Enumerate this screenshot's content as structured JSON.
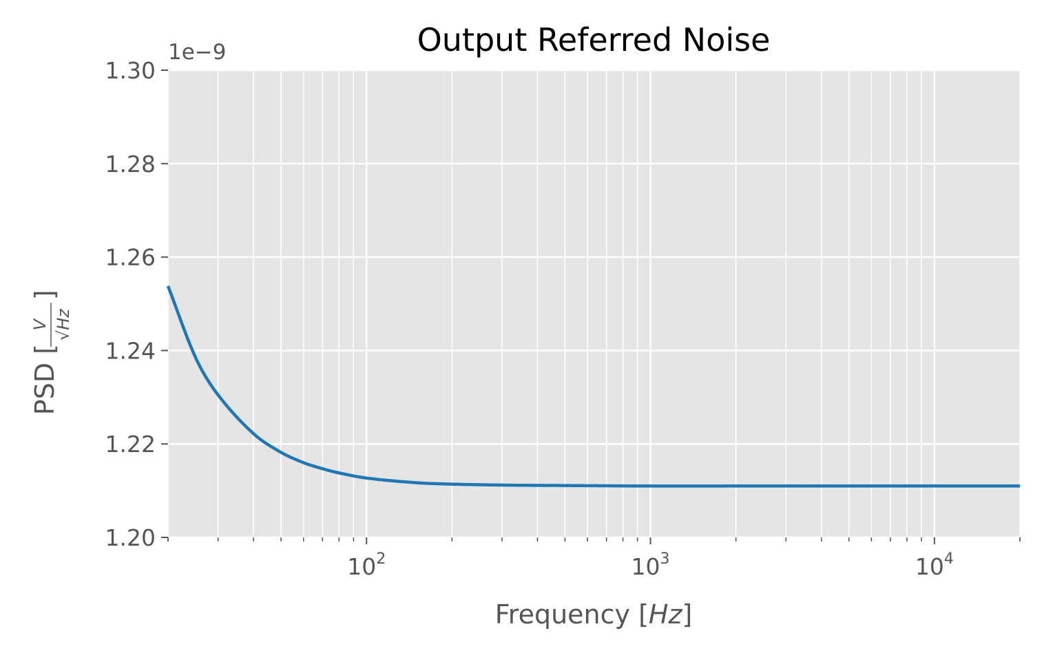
{
  "chart_data": {
    "type": "line",
    "title": "Output Referred Noise",
    "xlabel": "Frequency [Hz]",
    "xlabel_prefix": "Frequency [",
    "xlabel_unit": "Hz",
    "xlabel_suffix": "]",
    "ylabel": "PSD [V/√Hz]",
    "ylabel_prefix": "PSD [",
    "ylabel_num": "V",
    "ylabel_den": "√Hz",
    "ylabel_suffix": "]",
    "xscale": "log",
    "xlim": [
      20,
      20000
    ],
    "ylim": [
      1.2,
      1.3
    ],
    "y_offset_text": "1e−9",
    "x_major_ticks": [
      {
        "value": 100,
        "base": "10",
        "exp": "2"
      },
      {
        "value": 1000,
        "base": "10",
        "exp": "3"
      },
      {
        "value": 10000,
        "base": "10",
        "exp": "4"
      }
    ],
    "y_ticks": [
      1.2,
      1.22,
      1.24,
      1.26,
      1.28,
      1.3
    ],
    "y_tick_labels": [
      "1.20",
      "1.22",
      "1.24",
      "1.26",
      "1.28",
      "1.30"
    ],
    "grid": true,
    "series": [
      {
        "color": "#1f77b4",
        "x": [
          20,
          25,
          30,
          40,
          50,
          60,
          70,
          80,
          100,
          150,
          200,
          300,
          500,
          1000,
          2000,
          5000,
          10000,
          20000
        ],
        "y": [
          1.2538,
          1.2385,
          1.2305,
          1.2222,
          1.2182,
          1.216,
          1.2147,
          1.2138,
          1.2127,
          1.2117,
          1.2114,
          1.2112,
          1.2111,
          1.211,
          1.211,
          1.211,
          1.211,
          1.211
        ]
      }
    ],
    "colors": {
      "axes_bg": "#e5e5e5",
      "grid": "#ffffff",
      "text": "#555555"
    }
  }
}
